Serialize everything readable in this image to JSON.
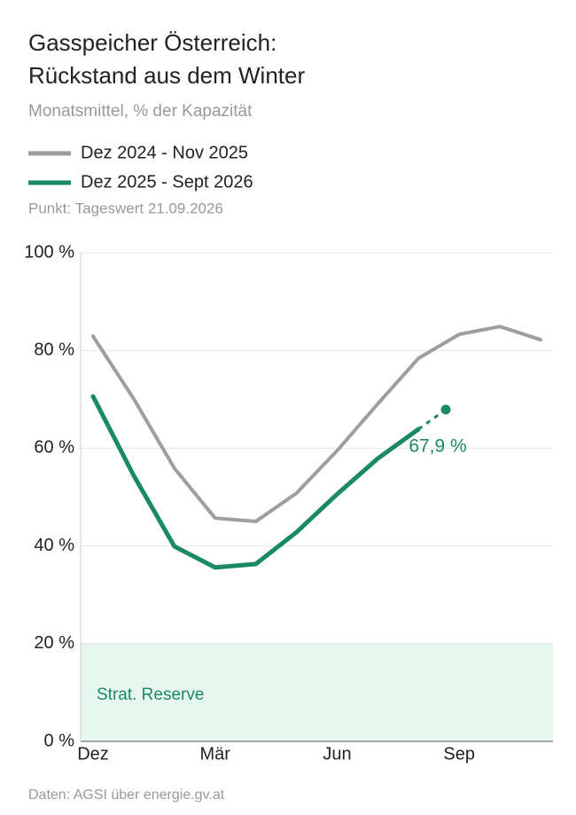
{
  "chart_data": {
    "type": "line",
    "title": [
      "Gasspeicher Österreich:",
      "Rückstand aus dem Winter"
    ],
    "subtitle": "Monatsmittel, % der Kapazität",
    "note": "Punkt: Tageswert 21.09.2026",
    "source": "Daten: AGSI über energie.gv.at",
    "categories": [
      "Dez",
      null,
      null,
      "Mär",
      null,
      null,
      "Jun",
      null,
      null,
      "Sep",
      null,
      null
    ],
    "series": [
      {
        "name": "Dez 2024 - Nov 2025",
        "color": "#9d9f9e",
        "values": [
          82.9,
          70.1,
          55.9,
          45.7,
          45.0,
          50.8,
          59.5,
          69.1,
          78.4,
          83.3,
          84.9,
          82.2
        ]
      },
      {
        "name": "Dez 2025 - Sept 2026",
        "color": "#1a8a63",
        "values": [
          70.6,
          54.4,
          39.9,
          35.6,
          36.3,
          42.8,
          50.6,
          57.9,
          63.9,
          null,
          null,
          null
        ]
      }
    ],
    "point": {
      "value": 67.9,
      "value_label": "67,9 %",
      "color": "#1a8a63"
    },
    "reserve": {
      "label": "Strat. Reserve",
      "range": [
        0,
        20
      ],
      "color": "#e8f6f0"
    },
    "ylim": [
      0,
      100
    ],
    "yticks": [
      {
        "value": 0,
        "label": "0 %"
      },
      {
        "value": 20,
        "label": "20 %"
      },
      {
        "value": 40,
        "label": "40 %"
      },
      {
        "value": 60,
        "label": "60 %"
      },
      {
        "value": 80,
        "label": "80 %"
      },
      {
        "value": 100,
        "label": "100 %"
      }
    ],
    "grid": true
  }
}
